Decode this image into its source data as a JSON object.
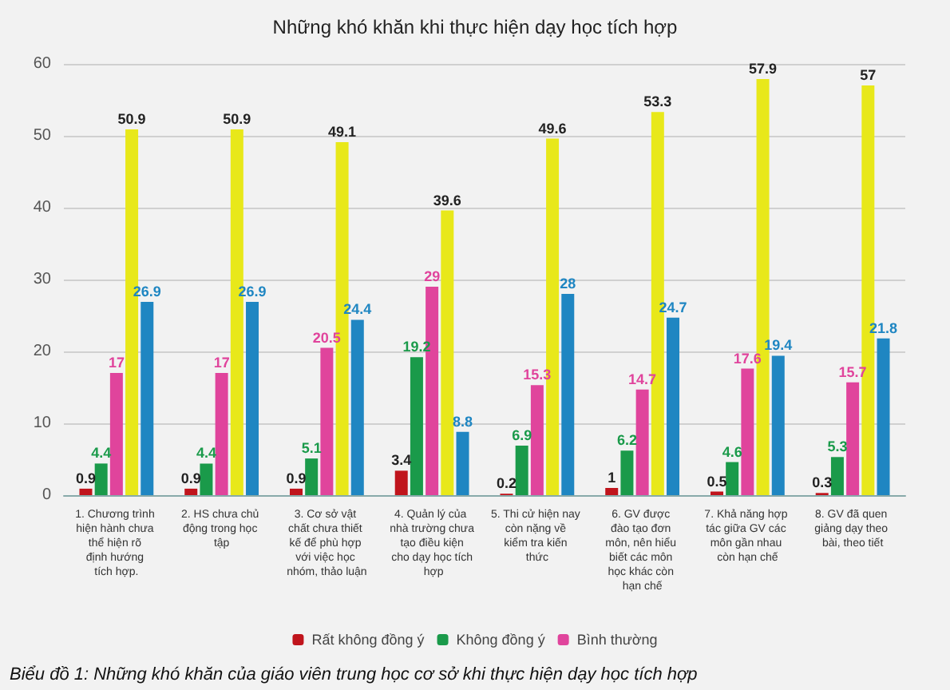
{
  "chart_data": {
    "type": "bar",
    "title": "Những khó khăn khi thực hiện dạy học tích hợp",
    "categories": [
      "1. Chương trình hiện hành chưa thể hiện rõ định hướng tích hợp.",
      "2. HS chưa chủ động trong học tập",
      "3. Cơ sở vật chất chưa thiết kế để phù hợp với việc học nhóm, thảo luận",
      "4. Quản lý của nhà trường chưa tạo điều kiện cho dạy học tích hợp",
      "5. Thi cử hiện nay còn nặng về kiểm tra kiến thức",
      "6. GV được đào tạo đơn môn, nên hiểu biết các môn học khác còn hạn chế",
      "7. Khả năng hợp tác giữa GV các môn gần nhau còn hạn chế",
      "8. GV đã quen giảng dạy theo bài, theo tiết"
    ],
    "series": [
      {
        "name": "Rất không đồng ý",
        "color": "#c0141c",
        "values": [
          0.9,
          0.9,
          0.9,
          3.4,
          0.2,
          1,
          0.5,
          0.3
        ]
      },
      {
        "name": "Không đồng ý",
        "color": "#1a9a4a",
        "values": [
          4.4,
          4.4,
          5.1,
          19.2,
          6.9,
          6.2,
          4.6,
          5.3
        ]
      },
      {
        "name": "Bình thường",
        "color": "#e0449c",
        "values": [
          17,
          17,
          20.5,
          29,
          15.3,
          14.7,
          17.6,
          15.7
        ]
      },
      {
        "color": "#e8e81a",
        "values": [
          50.9,
          50.9,
          49.1,
          39.6,
          49.6,
          53.3,
          57.9,
          57
        ]
      },
      {
        "color": "#1f86c2",
        "values": [
          26.9,
          26.9,
          24.4,
          8.8,
          28,
          24.7,
          19.4,
          21.8
        ]
      }
    ],
    "ylim": [
      0,
      60
    ],
    "yticks": [
      0,
      10,
      20,
      30,
      40,
      50,
      60
    ],
    "grid": "y",
    "legend": "bottom",
    "data_labels": true,
    "annotations": [
      "Biểu đồ 1: Những khó khăn của giáo viên trung học cơ sở khi thực hiện dạy học tích hợp"
    ]
  }
}
